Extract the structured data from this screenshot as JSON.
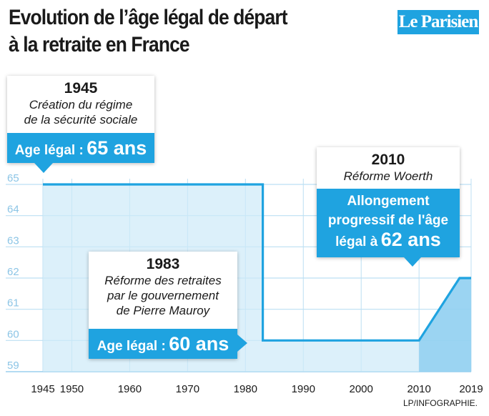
{
  "header": {
    "title_line1": "Evolution de l’âge légal de départ",
    "title_line2": "à la retraite en France",
    "logo": "Le Parisien"
  },
  "callouts": [
    {
      "year": "1945",
      "desc1": "Création du régime",
      "desc2": "de la sécurité sociale",
      "band_prefix": "Age légal :",
      "band_value": "65 ans"
    },
    {
      "year": "1983",
      "desc1": "Réforme des retraites",
      "desc2": "par le gouvernement",
      "desc3": "de Pierre Mauroy",
      "band_prefix": "Age légal :",
      "band_value": "60 ans"
    },
    {
      "year": "2010",
      "desc1": "Réforme Woerth",
      "band_line1": "Allongement",
      "band_line2": "progressif de l'âge",
      "band_prefix": "légal à",
      "band_value": "62 ans"
    }
  ],
  "credit": "LP/INFOGRAPHIE.",
  "colors": {
    "accent": "#1fa3e0",
    "fill": "#cde9f8",
    "grid": "#bcdff3",
    "text": "#1a1a1a"
  },
  "chart_data": {
    "type": "line",
    "x": [
      1945,
      1983,
      1983,
      2010,
      2017,
      2019
    ],
    "y": [
      65,
      65,
      60,
      60,
      62,
      62
    ],
    "xticks": [
      1945,
      1950,
      1960,
      1970,
      1980,
      1990,
      2000,
      2010,
      2019
    ],
    "yticks": [
      59,
      60,
      61,
      62,
      63,
      64,
      65
    ],
    "xlim": [
      1945,
      2019
    ],
    "ylim": [
      59,
      65
    ],
    "grid": true
  }
}
